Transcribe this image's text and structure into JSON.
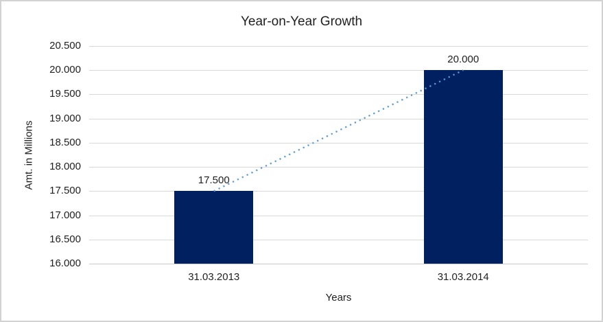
{
  "chart_data": {
    "type": "bar",
    "title": "Year-on-Year Growth",
    "xlabel": "Years",
    "ylabel": "Amt. in Millions",
    "categories": [
      "31.03.2013",
      "31.03.2014"
    ],
    "values": [
      17.5,
      20.0
    ],
    "data_labels": [
      "17.500",
      "20.000"
    ],
    "ylim": [
      16.0,
      20.5
    ],
    "ytick_labels": [
      "16.000",
      "16.500",
      "17.000",
      "17.500",
      "18.000",
      "18.500",
      "19.000",
      "19.500",
      "20.000",
      "20.500"
    ],
    "grid": true,
    "legend": "none",
    "colors": {
      "bar": "#002060",
      "gridline": "#d9d9d9",
      "axis_line": "#c9c9c9",
      "trendline": "#5b9bd5",
      "text": "#1f1f1f"
    },
    "trendline": {
      "style": "dotted",
      "from_value": 17.5,
      "to_value": 20.0
    }
  }
}
